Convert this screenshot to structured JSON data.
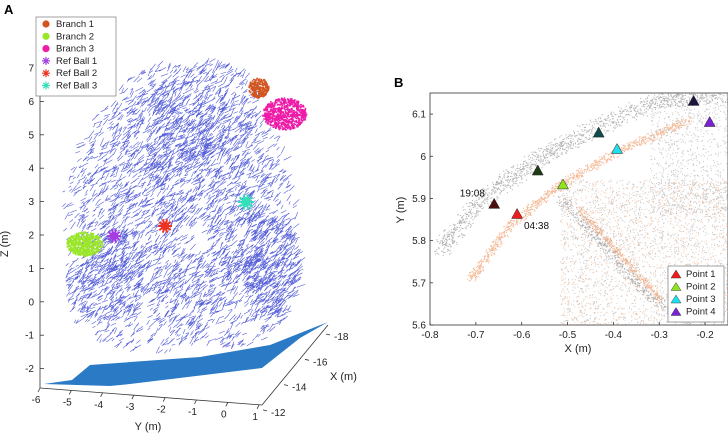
{
  "chart_data": [
    {
      "type": "scatter",
      "panel_label": "A",
      "xlabel": "X (m)",
      "ylabel": "Y (m)",
      "zlabel": "Z (m)",
      "x_ticks": [
        -18,
        -16,
        -14,
        -12
      ],
      "y_ticks": [
        -6,
        -5,
        -4,
        -3,
        -2,
        -1,
        0,
        1
      ],
      "z_ticks": [
        7,
        6,
        5,
        4,
        3,
        2,
        1,
        0,
        -1,
        -2
      ],
      "legend": [
        {
          "name": "Branch 1",
          "color": "#d2541e",
          "marker": "dot"
        },
        {
          "name": "Branch 2",
          "color": "#9ae62a",
          "marker": "dot"
        },
        {
          "name": "Branch 3",
          "color": "#ee1aa8",
          "marker": "dot"
        },
        {
          "name": "Ref Ball 1",
          "color": "#a33ee0",
          "marker": "star"
        },
        {
          "name": "Ref Ball 2",
          "color": "#ee3322",
          "marker": "star"
        },
        {
          "name": "Ref Ball 3",
          "color": "#33e0b8",
          "marker": "star"
        }
      ],
      "colors": {
        "tree_points": "#1a27c9",
        "ground": "#1f73c3"
      }
    },
    {
      "type": "scatter",
      "panel_label": "B",
      "xlabel": "X (m)",
      "ylabel": "Y (m)",
      "xlim": [
        -0.8,
        -0.15
      ],
      "ylim": [
        5.6,
        6.15
      ],
      "x_ticks": [
        -0.8,
        -0.7,
        -0.6,
        -0.5,
        -0.4,
        -0.3,
        -0.2
      ],
      "y_ticks": [
        6.1,
        6,
        5.9,
        5.8,
        5.7,
        5.6
      ],
      "legend": [
        {
          "name": "Point 1",
          "color": "#ee1d1d"
        },
        {
          "name": "Point 2",
          "color": "#8ee51f"
        },
        {
          "name": "Point 3",
          "color": "#22dff0"
        },
        {
          "name": "Point 4",
          "color": "#7a22d6"
        }
      ],
      "annotations": [
        {
          "text": "19:08",
          "x": -0.735,
          "y": 5.905
        },
        {
          "text": "04:38",
          "x": -0.595,
          "y": 5.828
        }
      ],
      "series": [
        {
          "point": "Point 1",
          "time": "04:38",
          "x": -0.61,
          "y": 5.862,
          "color": "#ee1d1d"
        },
        {
          "point": "Point 2",
          "time": "04:38",
          "x": -0.51,
          "y": 5.932,
          "color": "#8ee51f"
        },
        {
          "point": "Point 3",
          "time": "04:38",
          "x": -0.392,
          "y": 6.016,
          "color": "#22dff0"
        },
        {
          "point": "Point 4",
          "time": "04:38",
          "x": -0.19,
          "y": 6.08,
          "color": "#7a22d6"
        },
        {
          "point": "Point 1",
          "time": "19:08",
          "x": -0.66,
          "y": 5.886,
          "color": "#4a0f0f"
        },
        {
          "point": "Point 2",
          "time": "19:08",
          "x": -0.565,
          "y": 5.965,
          "color": "#1d3d12"
        },
        {
          "point": "Point 3",
          "time": "19:08",
          "x": -0.432,
          "y": 6.055,
          "color": "#0f4c4c"
        },
        {
          "point": "Point 4",
          "time": "19:08",
          "x": -0.225,
          "y": 6.13,
          "color": "#1d1540"
        }
      ],
      "colors": {
        "cloud_time1": "#999999",
        "cloud_time2": "#f0a070"
      }
    }
  ]
}
